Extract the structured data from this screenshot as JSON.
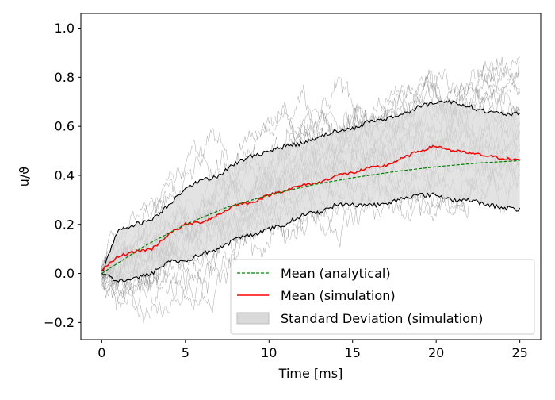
{
  "chart_data": {
    "type": "line",
    "title": "",
    "xlabel": "Time [ms]",
    "ylabel": "u/ϑ",
    "xlim": [
      -1.25,
      26.25
    ],
    "ylim": [
      -0.27,
      1.06
    ],
    "xticks": [
      0,
      5,
      10,
      15,
      20,
      25
    ],
    "yticks": [
      -0.2,
      0.0,
      0.2,
      0.4,
      0.6,
      0.8,
      1.0
    ],
    "xtick_labels": [
      "0",
      "5",
      "10",
      "15",
      "20",
      "25"
    ],
    "ytick_labels": [
      "−0.2",
      "0.0",
      "0.2",
      "0.4",
      "0.6",
      "0.8",
      "1.0"
    ],
    "grid": false,
    "legend_position": "lower-right",
    "colors": {
      "analytical": "#008000",
      "simulation": "#ff0000",
      "band_fill": "#d9d9d9",
      "band_edge": "#000000",
      "trajectories": "#808080"
    },
    "series": [
      {
        "name": "Mean (analytical)",
        "style": "dashed",
        "x": [
          0,
          2.5,
          5,
          7.5,
          10,
          12.5,
          15,
          17.5,
          20,
          22.5,
          25
        ],
        "y": [
          0.0,
          0.11,
          0.2,
          0.27,
          0.32,
          0.36,
          0.39,
          0.415,
          0.435,
          0.45,
          0.46
        ]
      },
      {
        "name": "Mean (simulation)",
        "style": "solid",
        "x": [
          0,
          1,
          2,
          3,
          4,
          5,
          6,
          7,
          8,
          9,
          10,
          11,
          12,
          13,
          14,
          15,
          16,
          17,
          18,
          19,
          20,
          21,
          22,
          23,
          24,
          25
        ],
        "y": [
          0.01,
          0.07,
          0.09,
          0.1,
          0.16,
          0.2,
          0.21,
          0.24,
          0.28,
          0.29,
          0.32,
          0.34,
          0.36,
          0.37,
          0.4,
          0.41,
          0.43,
          0.44,
          0.47,
          0.5,
          0.52,
          0.5,
          0.49,
          0.48,
          0.47,
          0.46
        ]
      },
      {
        "name": "Standard Deviation (simulation)",
        "type": "band",
        "x": [
          0,
          1,
          2,
          3,
          4,
          5,
          6,
          7,
          8,
          9,
          10,
          11,
          12,
          13,
          14,
          15,
          16,
          17,
          18,
          19,
          20,
          21,
          22,
          23,
          24,
          25
        ],
        "lower": [
          0.0,
          -0.03,
          -0.02,
          0.0,
          0.05,
          0.05,
          0.08,
          0.1,
          0.14,
          0.16,
          0.18,
          0.2,
          0.24,
          0.25,
          0.28,
          0.28,
          0.28,
          0.28,
          0.31,
          0.32,
          0.32,
          0.3,
          0.3,
          0.28,
          0.27,
          0.26
        ],
        "upper": [
          0.0,
          0.18,
          0.2,
          0.22,
          0.28,
          0.35,
          0.38,
          0.4,
          0.45,
          0.48,
          0.5,
          0.52,
          0.53,
          0.56,
          0.58,
          0.59,
          0.62,
          0.63,
          0.65,
          0.68,
          0.7,
          0.7,
          0.68,
          0.66,
          0.65,
          0.65
        ]
      }
    ],
    "legend": [
      "Mean (analytical)",
      "Mean (simulation)",
      "Standard Deviation (simulation)"
    ]
  }
}
